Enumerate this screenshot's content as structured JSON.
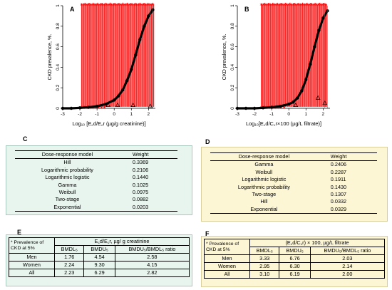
{
  "figure": {
    "colors": {
      "band": "#ff0000",
      "curve": "#000000",
      "green_panel": "#e8f5ee",
      "yellow_panel": "#fdf6d5"
    }
  },
  "chart_data": [
    {
      "type": "scatter",
      "panel": "A",
      "title": "",
      "ylabel": "CKD prevalence, %.",
      "xlabel": "Log₁₀ [E꜀d/E꜀r (µg/g creatinine)]",
      "xlim": [
        -3,
        2.4
      ],
      "ylim": [
        0,
        1
      ],
      "xticks": [
        "-3",
        "-2",
        "-1",
        "0",
        "1",
        "2"
      ],
      "yticks": [
        "0",
        "0.2",
        "0.4",
        "0.6",
        "0.8",
        "1"
      ],
      "legend": "none",
      "grid": false,
      "band_x_range": [
        -1.9,
        2.3
      ],
      "series": [
        {
          "x": [
            -3,
            -2.5,
            -2,
            -1.5,
            -1,
            -0.5,
            0,
            0.25,
            0.5,
            0.75,
            1,
            1.25,
            1.5,
            1.75,
            2,
            2.25
          ],
          "y": [
            0,
            0,
            0.005,
            0.01,
            0.02,
            0.04,
            0.08,
            0.12,
            0.18,
            0.27,
            0.38,
            0.52,
            0.67,
            0.8,
            0.9,
            0.96
          ]
        }
      ],
      "triangles": [
        {
          "x": -0.35,
          "y": 0.03
        },
        {
          "x": 0.2,
          "y": 0.03
        },
        {
          "x": 1.1,
          "y": 0.03
        },
        {
          "x": 2.1,
          "y": 0.02
        }
      ]
    },
    {
      "type": "scatter",
      "panel": "B",
      "title": "",
      "ylabel": "CKD prevalence, %.",
      "xlabel": "Log₁₀[E꜀d/C꜀r×100 (µg/L filtrate)]",
      "xlim": [
        -3,
        2.4
      ],
      "ylim": [
        0,
        1
      ],
      "xticks": [
        "-3",
        "-2",
        "-1",
        "0",
        "1",
        "2"
      ],
      "yticks": [
        "0",
        "0.2",
        "0.4",
        "0.6",
        "0.8",
        "1"
      ],
      "legend": "none",
      "grid": false,
      "band_x_range": [
        -1.6,
        2.2
      ],
      "series": [
        {
          "x": [
            -3,
            -2.5,
            -2,
            -1.5,
            -1,
            -0.5,
            0,
            0.25,
            0.5,
            0.75,
            1,
            1.25,
            1.5,
            1.75,
            2,
            2.25
          ],
          "y": [
            0,
            0,
            0,
            0.005,
            0.01,
            0.02,
            0.04,
            0.06,
            0.1,
            0.17,
            0.28,
            0.43,
            0.6,
            0.76,
            0.88,
            0.95
          ]
        }
      ],
      "triangles": [
        {
          "x": 0.4,
          "y": 0.03
        },
        {
          "x": 1.7,
          "y": 0.1
        },
        {
          "x": 2.1,
          "y": 0.05
        }
      ]
    }
  ],
  "table_c": {
    "letter": "C",
    "headers": [
      "Dose-response model",
      "Weight"
    ],
    "rows": [
      [
        "Hill",
        "0.3369"
      ],
      [
        "Logarithmic probability",
        "0.2106"
      ],
      [
        "Logarithmic logistic",
        "0.1440"
      ],
      [
        "Gamma",
        "0.1025"
      ],
      [
        "Weibull",
        "0.0975"
      ],
      [
        "Two-stage",
        "0.0882"
      ],
      [
        "Exponential",
        "0.0203"
      ]
    ]
  },
  "table_d": {
    "letter": "D",
    "headers": [
      "Dose-response model",
      "Weight"
    ],
    "rows": [
      [
        "Gamma",
        "0.2406"
      ],
      [
        "Weibull",
        "0.2287"
      ],
      [
        "Logarithmic logistic",
        "0.1911"
      ],
      [
        "Logarithmic probability",
        "0.1430"
      ],
      [
        "Two-stage",
        "0.1307"
      ],
      [
        "Hill",
        "0.0332"
      ],
      [
        "Exponential",
        "0.0329"
      ]
    ]
  },
  "table_e": {
    "letter": "E",
    "corner": "* Prevalence of CKD at 5%",
    "group_header": "E꜀d/E꜀r, µg/ g creatinine",
    "col_headers": [
      "BMDL₅",
      "BMDU₅",
      "BMDU₅/BMDL₅ ratio"
    ],
    "rows": [
      [
        "Men",
        "1.76",
        "4.54",
        "2.58"
      ],
      [
        "Women",
        "2.24",
        "9.30",
        "4.15"
      ],
      [
        "All",
        "2.23",
        "6.29",
        "2.82"
      ]
    ]
  },
  "table_f": {
    "letter": "F",
    "corner": "* Prevalence of CKD at 5%",
    "group_header": "(E꜀d/C꜀r) × 100, µg/L filtrate",
    "col_headers": [
      "BMDL₅",
      "BMDU₅",
      "BMDU₅/BMDL₅ ratio"
    ],
    "rows": [
      [
        "Men",
        "3.33",
        "6.76",
        "2.03"
      ],
      [
        "Women",
        "2.95",
        "6.30",
        "2.14"
      ],
      [
        "All",
        "3.10",
        "6.19",
        "2.00"
      ]
    ]
  }
}
